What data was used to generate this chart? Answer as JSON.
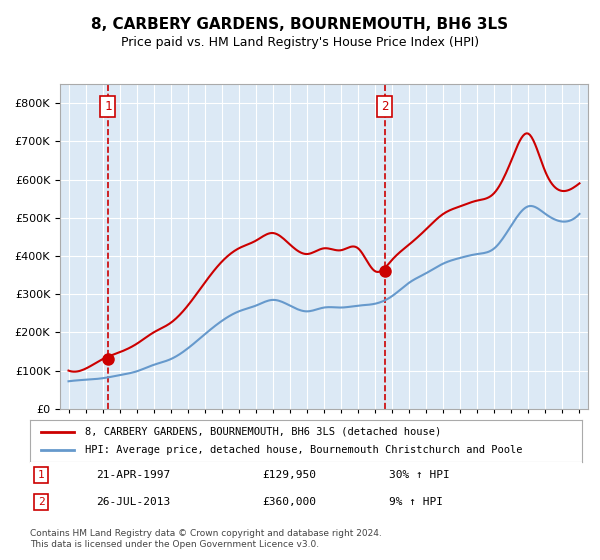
{
  "title": "8, CARBERY GARDENS, BOURNEMOUTH, BH6 3LS",
  "subtitle": "Price paid vs. HM Land Registry's House Price Index (HPI)",
  "legend_line1": "8, CARBERY GARDENS, BOURNEMOUTH, BH6 3LS (detached house)",
  "legend_line2": "HPI: Average price, detached house, Bournemouth Christchurch and Poole",
  "annotation1_label": "1",
  "annotation1_date": "21-APR-1997",
  "annotation1_price": "£129,950",
  "annotation1_hpi": "30% ↑ HPI",
  "annotation2_label": "2",
  "annotation2_date": "26-JUL-2013",
  "annotation2_price": "£360,000",
  "annotation2_hpi": "9% ↑ HPI",
  "footnote": "Contains HM Land Registry data © Crown copyright and database right 2024.\nThis data is licensed under the Open Government Licence v3.0.",
  "sale1_year": 1997.31,
  "sale1_price": 129950,
  "sale2_year": 2013.56,
  "sale2_price": 360000,
  "background_color": "#dce9f5",
  "plot_bg_color": "#dce9f5",
  "red_line_color": "#cc0000",
  "blue_line_color": "#6699cc",
  "dashed_line_color": "#cc0000",
  "ylim": [
    0,
    850000
  ],
  "xlim_start": 1995,
  "xlim_end": 2025.5,
  "hpi_years": [
    1995,
    1996,
    1997,
    1998,
    1999,
    2000,
    2001,
    2002,
    2003,
    2004,
    2005,
    2006,
    2007,
    2008,
    2009,
    2010,
    2011,
    2012,
    2013,
    2014,
    2015,
    2016,
    2017,
    2018,
    2019,
    2020,
    2021,
    2022,
    2023,
    2024,
    2025
  ],
  "hpi_values": [
    72000,
    76000,
    80000,
    88000,
    98000,
    115000,
    130000,
    158000,
    195000,
    230000,
    255000,
    270000,
    285000,
    270000,
    255000,
    265000,
    265000,
    270000,
    275000,
    295000,
    330000,
    355000,
    380000,
    395000,
    405000,
    420000,
    480000,
    530000,
    510000,
    490000,
    510000
  ],
  "price_years": [
    1995,
    1996,
    1997,
    1998,
    1999,
    2000,
    2001,
    2002,
    2003,
    2004,
    2005,
    2006,
    2007,
    2008,
    2009,
    2010,
    2011,
    2012,
    2013,
    2014,
    2015,
    2016,
    2017,
    2018,
    2019,
    2020,
    2021,
    2022,
    2023,
    2024,
    2025
  ],
  "price_values": [
    100000,
    105000,
    129950,
    148000,
    170000,
    200000,
    225000,
    270000,
    330000,
    385000,
    420000,
    440000,
    460000,
    430000,
    405000,
    420000,
    415000,
    420000,
    360000,
    390000,
    430000,
    470000,
    510000,
    530000,
    545000,
    565000,
    650000,
    720000,
    620000,
    570000,
    590000
  ]
}
